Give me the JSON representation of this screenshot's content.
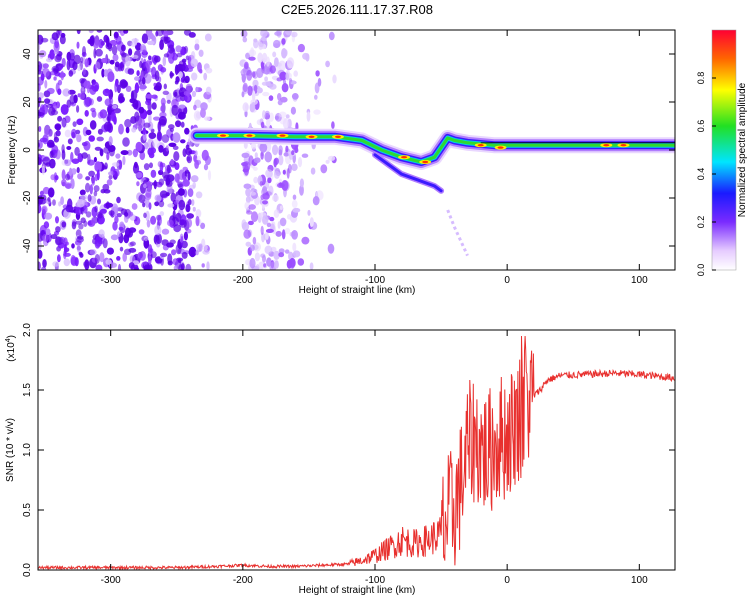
{
  "title": "C2E5.2026.111.17.37.R08",
  "chart_data": [
    {
      "type": "heatmap",
      "xlabel": "Height of straight line (km)",
      "ylabel": "Frequency (Hz)",
      "xlim": [
        -355,
        127
      ],
      "ylim": [
        -50,
        50
      ],
      "xticks": [
        -300,
        -200,
        -100,
        0,
        100
      ],
      "yticks": [
        -40,
        -20,
        0,
        20,
        40
      ],
      "colorbar": {
        "label": "Normalized spectral amplitude",
        "range": [
          0,
          1
        ],
        "ticks": [
          0.0,
          0.2,
          0.4,
          0.6,
          0.8
        ]
      },
      "ridge": {
        "x": [
          -235,
          -200,
          -160,
          -130,
          -110,
          -95,
          -80,
          -65,
          -55,
          -45,
          -40,
          -30,
          -10,
          20,
          60,
          90,
          127
        ],
        "y": [
          6,
          6,
          5.5,
          5.5,
          4,
          0,
          -3,
          -5,
          -3,
          5,
          4,
          3,
          2,
          2,
          2,
          2,
          2
        ]
      },
      "branch": {
        "x": [
          -100,
          -90,
          -80,
          -70,
          -60,
          -55,
          -50
        ],
        "y": [
          -2,
          -6,
          -10,
          -12,
          -14,
          -15,
          -17
        ]
      }
    },
    {
      "type": "line",
      "xlabel": "Height of straight line (km)",
      "ylabel": "SNR (10 * v/v)",
      "scale_label": "(x10",
      "scale_exp": "4",
      "xlim": [
        -355,
        127
      ],
      "ylim": [
        0,
        2.0
      ],
      "xticks": [
        -300,
        -200,
        -100,
        0,
        100
      ],
      "yticks": [
        0.0,
        0.5,
        1.0,
        1.5,
        2.0
      ],
      "series": [
        {
          "name": "SNR",
          "color": "#e8302e",
          "x": [
            -355,
            -300,
            -250,
            -220,
            -200,
            -180,
            -160,
            -140,
            -120,
            -110,
            -100,
            -90,
            -80,
            -70,
            -60,
            -50,
            -45,
            -40,
            -35,
            -30,
            -25,
            -20,
            -15,
            -10,
            -5,
            0,
            5,
            10,
            15,
            20,
            25,
            30,
            40,
            60,
            80,
            100,
            127
          ],
          "y": [
            0.02,
            0.02,
            0.02,
            0.03,
            0.04,
            0.03,
            0.03,
            0.04,
            0.05,
            0.08,
            0.12,
            0.18,
            0.25,
            0.22,
            0.25,
            0.3,
            0.42,
            0.52,
            0.7,
            1.0,
            1.1,
            1.02,
            0.95,
            1.05,
            1.1,
            1.12,
            1.2,
            1.3,
            1.38,
            1.45,
            1.5,
            1.58,
            1.62,
            1.63,
            1.64,
            1.63,
            1.6
          ]
        }
      ]
    }
  ]
}
